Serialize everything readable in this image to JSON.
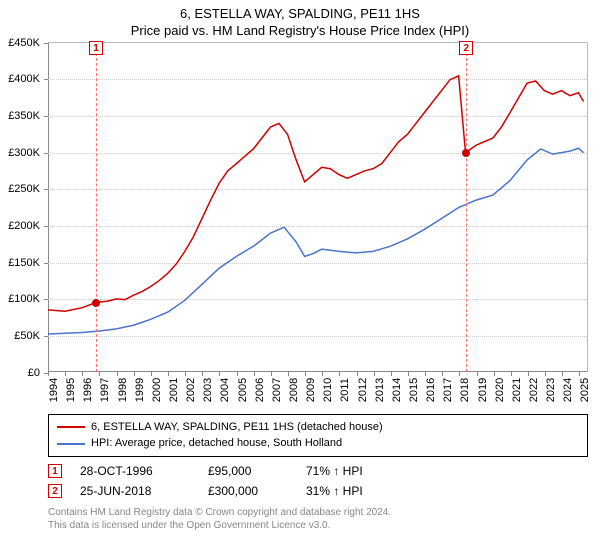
{
  "title": {
    "main": "6, ESTELLA WAY, SPALDING, PE11 1HS",
    "sub": "Price paid vs. HM Land Registry's House Price Index (HPI)"
  },
  "chart": {
    "type": "line",
    "background_color": "#ffffff",
    "grid_color": "#cccccc",
    "axis_color": "#888888",
    "ylim": [
      0,
      450000
    ],
    "ytick_step": 50000,
    "yticks": [
      "£0",
      "£50K",
      "£100K",
      "£150K",
      "£200K",
      "£250K",
      "£300K",
      "£350K",
      "£400K",
      "£450K"
    ],
    "xlim": [
      1994,
      2025.5
    ],
    "xticks": [
      "1994",
      "1995",
      "1996",
      "1997",
      "1998",
      "1999",
      "2000",
      "2001",
      "2002",
      "2003",
      "2004",
      "2005",
      "2006",
      "2007",
      "2008",
      "2009",
      "2010",
      "2011",
      "2012",
      "2013",
      "2014",
      "2015",
      "2016",
      "2017",
      "2018",
      "2019",
      "2020",
      "2021",
      "2022",
      "2023",
      "2024",
      "2025"
    ],
    "tick_fontsize": 11,
    "title_fontsize": 13,
    "series": [
      {
        "name": "price_paid",
        "label": "6, ESTELLA WAY, SPALDING, PE11 1HS (detached house)",
        "color": "#d00000",
        "line_width": 1.5,
        "points": [
          [
            1994,
            85000
          ],
          [
            1995,
            83000
          ],
          [
            1996,
            88000
          ],
          [
            1996.8,
            95000
          ],
          [
            1997.5,
            97000
          ],
          [
            1998,
            100000
          ],
          [
            1998.5,
            99000
          ],
          [
            1999,
            105000
          ],
          [
            1999.5,
            110000
          ],
          [
            2000,
            117000
          ],
          [
            2000.5,
            125000
          ],
          [
            2001,
            135000
          ],
          [
            2001.5,
            148000
          ],
          [
            2002,
            165000
          ],
          [
            2002.5,
            185000
          ],
          [
            2003,
            210000
          ],
          [
            2003.5,
            235000
          ],
          [
            2004,
            258000
          ],
          [
            2004.5,
            275000
          ],
          [
            2005,
            285000
          ],
          [
            2005.5,
            295000
          ],
          [
            2006,
            305000
          ],
          [
            2006.5,
            320000
          ],
          [
            2007,
            335000
          ],
          [
            2007.5,
            340000
          ],
          [
            2008,
            325000
          ],
          [
            2008.5,
            290000
          ],
          [
            2009,
            260000
          ],
          [
            2009.5,
            270000
          ],
          [
            2010,
            280000
          ],
          [
            2010.5,
            278000
          ],
          [
            2011,
            270000
          ],
          [
            2011.5,
            265000
          ],
          [
            2012,
            270000
          ],
          [
            2012.5,
            275000
          ],
          [
            2013,
            278000
          ],
          [
            2013.5,
            285000
          ],
          [
            2014,
            300000
          ],
          [
            2014.5,
            315000
          ],
          [
            2015,
            325000
          ],
          [
            2015.5,
            340000
          ],
          [
            2016,
            355000
          ],
          [
            2016.5,
            370000
          ],
          [
            2017,
            385000
          ],
          [
            2017.5,
            400000
          ],
          [
            2018,
            405000
          ],
          [
            2018.4,
            300000
          ],
          [
            2019,
            310000
          ],
          [
            2019.5,
            315000
          ],
          [
            2020,
            320000
          ],
          [
            2020.5,
            335000
          ],
          [
            2021,
            355000
          ],
          [
            2021.5,
            375000
          ],
          [
            2022,
            395000
          ],
          [
            2022.5,
            398000
          ],
          [
            2023,
            385000
          ],
          [
            2023.5,
            380000
          ],
          [
            2024,
            385000
          ],
          [
            2024.5,
            378000
          ],
          [
            2025,
            382000
          ],
          [
            2025.3,
            370000
          ]
        ]
      },
      {
        "name": "hpi",
        "label": "HPI: Average price, detached house, South Holland",
        "color": "#4a74c9",
        "line_width": 1.5,
        "points": [
          [
            1994,
            52000
          ],
          [
            1995,
            53000
          ],
          [
            1996,
            54000
          ],
          [
            1997,
            56000
          ],
          [
            1998,
            59000
          ],
          [
            1999,
            64000
          ],
          [
            2000,
            72000
          ],
          [
            2001,
            82000
          ],
          [
            2002,
            98000
          ],
          [
            2003,
            120000
          ],
          [
            2004,
            142000
          ],
          [
            2005,
            158000
          ],
          [
            2006,
            172000
          ],
          [
            2007,
            190000
          ],
          [
            2007.8,
            198000
          ],
          [
            2008.5,
            178000
          ],
          [
            2009,
            158000
          ],
          [
            2009.5,
            162000
          ],
          [
            2010,
            168000
          ],
          [
            2011,
            165000
          ],
          [
            2012,
            163000
          ],
          [
            2013,
            165000
          ],
          [
            2014,
            172000
          ],
          [
            2015,
            182000
          ],
          [
            2016,
            195000
          ],
          [
            2017,
            210000
          ],
          [
            2018,
            225000
          ],
          [
            2019,
            235000
          ],
          [
            2020,
            242000
          ],
          [
            2021,
            262000
          ],
          [
            2022,
            290000
          ],
          [
            2022.8,
            305000
          ],
          [
            2023.5,
            298000
          ],
          [
            2024,
            300000
          ],
          [
            2024.5,
            302000
          ],
          [
            2025,
            306000
          ],
          [
            2025.3,
            300000
          ]
        ]
      }
    ],
    "markers": [
      {
        "num": "1",
        "x": 1996.8,
        "y": 95000,
        "line_color": "#ff7070",
        "dot_color": "#d00000"
      },
      {
        "num": "2",
        "x": 2018.4,
        "y": 300000,
        "line_color": "#ff7070",
        "dot_color": "#d00000"
      }
    ]
  },
  "legend": {
    "items": [
      {
        "color": "#d00000",
        "label": "6, ESTELLA WAY, SPALDING, PE11 1HS (detached house)"
      },
      {
        "color": "#4a74c9",
        "label": "HPI: Average price, detached house, South Holland"
      }
    ]
  },
  "sales": [
    {
      "num": "1",
      "date": "28-OCT-1996",
      "price": "£95,000",
      "pct": "71% ↑ HPI"
    },
    {
      "num": "2",
      "date": "25-JUN-2018",
      "price": "£300,000",
      "pct": "31% ↑ HPI"
    }
  ],
  "footer": {
    "line1": "Contains HM Land Registry data © Crown copyright and database right 2024.",
    "line2": "This data is licensed under the Open Government Licence v3.0."
  }
}
